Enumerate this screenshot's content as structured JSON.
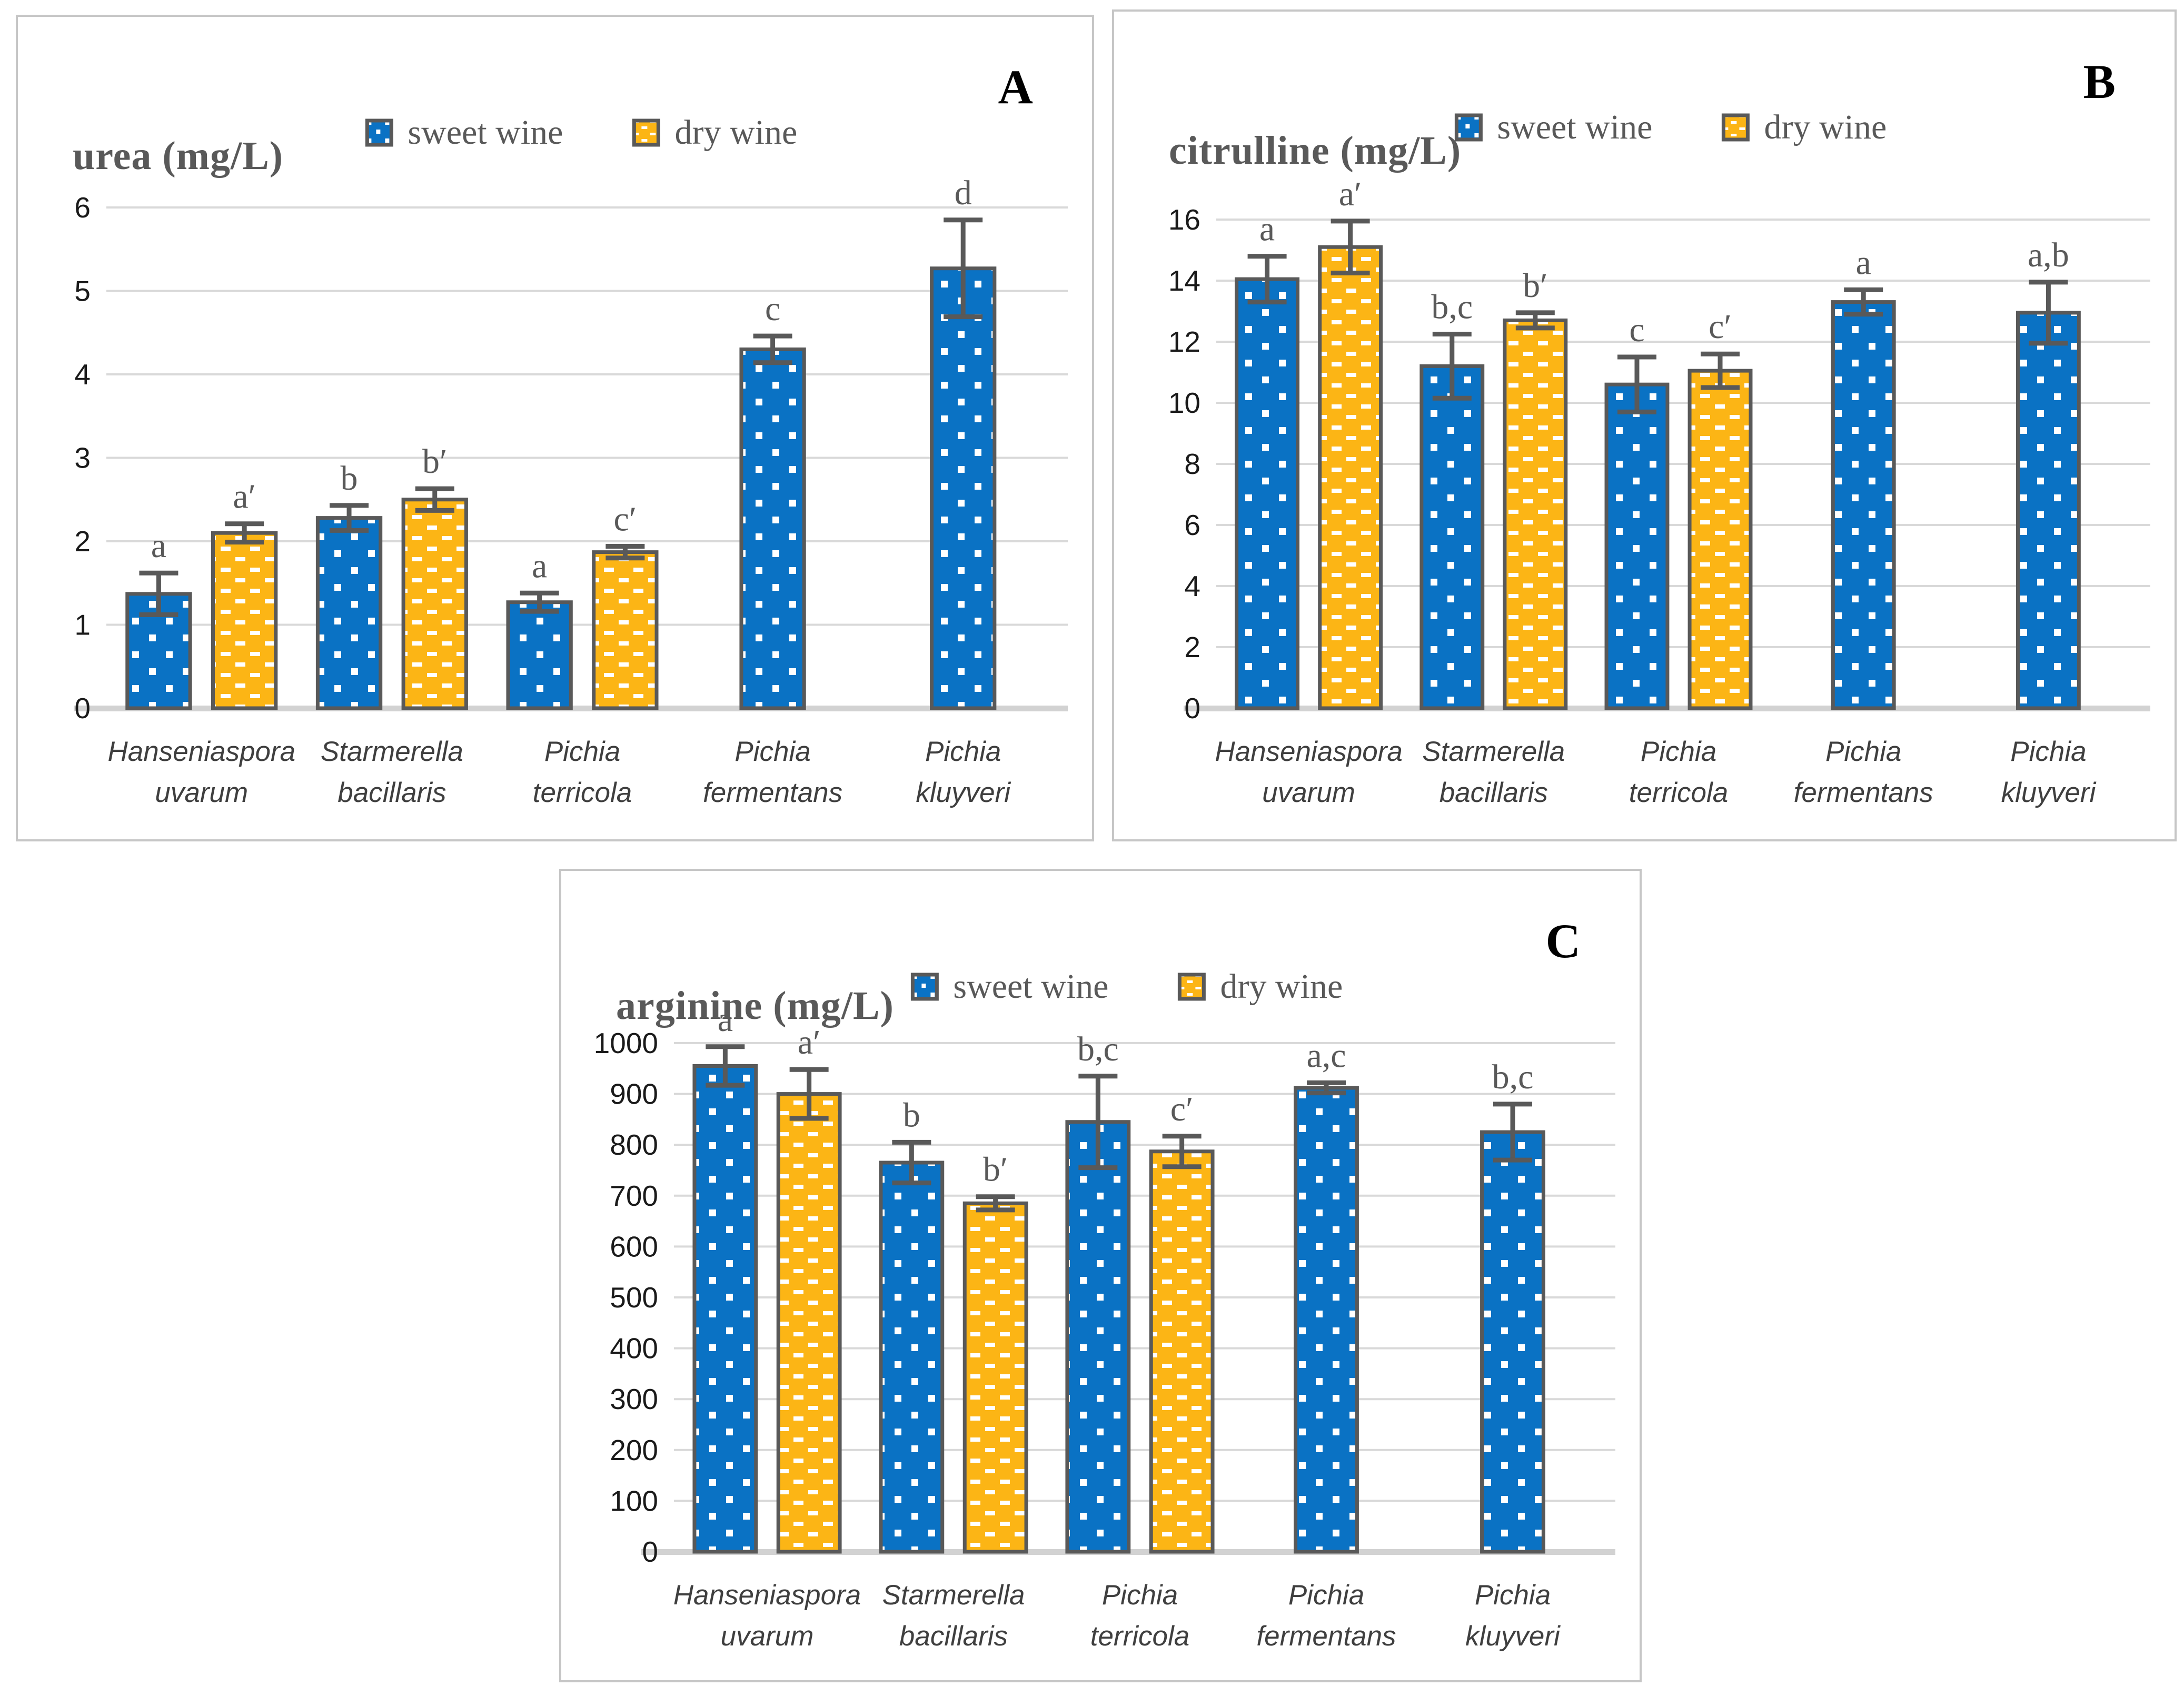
{
  "figure": {
    "panels": [
      {
        "letter": "A"
      },
      {
        "letter": "B"
      },
      {
        "letter": "C"
      }
    ]
  },
  "colors": {
    "sweet_wine_fill": "#0a72c4",
    "dry_wine_fill": "#fcb515",
    "bar_border": "#595959",
    "error_bar": "#595959",
    "gridline": "#d9d9d9",
    "baseline": "#d2d2d2",
    "panel_border": "#c6c6c6",
    "title_text": "#595959",
    "sig_text": "#595959",
    "tick_text": "#1a1a1a",
    "category_text": "#3f3f3f",
    "letter_text": "#000000"
  },
  "chart_data": [
    {
      "type": "bar",
      "panel_letter": "A",
      "title": "urea (mg/L)",
      "ylabel": "urea (mg/L)",
      "xlabel": "",
      "grid": true,
      "legend_position": "top",
      "ylim": [
        0,
        6
      ],
      "ytick_step": 1,
      "yticks": [
        0,
        1,
        2,
        3,
        4,
        5,
        6
      ],
      "categories": [
        "Hanseniaspora uvarum",
        "Starmerella bacillaris",
        "Pichia terricola",
        "Pichia fermentans",
        "Pichia kluyveri"
      ],
      "categories_lines": [
        [
          "Hanseniaspora",
          "uvarum"
        ],
        [
          "Starmerella",
          "bacillaris"
        ],
        [
          "Pichia",
          "terricola"
        ],
        [
          "Pichia",
          "fermentans"
        ],
        [
          "Pichia",
          "kluyveri"
        ]
      ],
      "series": [
        {
          "name": "sweet wine",
          "values": [
            1.37,
            2.28,
            1.27,
            4.3,
            5.27
          ],
          "errors": [
            0.25,
            0.15,
            0.11,
            0.16,
            0.58
          ],
          "sig_labels": [
            "a",
            "b",
            "a",
            "c",
            "d"
          ]
        },
        {
          "name": "dry wine",
          "values": [
            2.1,
            2.5,
            1.87,
            null,
            null
          ],
          "errors": [
            0.11,
            0.13,
            0.07,
            null,
            null
          ],
          "sig_labels": [
            "a′",
            "b′",
            "c′",
            null,
            null
          ]
        }
      ]
    },
    {
      "type": "bar",
      "panel_letter": "B",
      "title": "citrulline (mg/L)",
      "ylabel": "citrulline (mg/L)",
      "xlabel": "",
      "grid": true,
      "legend_position": "top",
      "ylim": [
        0,
        16
      ],
      "ytick_step": 2,
      "yticks": [
        0,
        2,
        4,
        6,
        8,
        10,
        12,
        14,
        16
      ],
      "categories": [
        "Hanseniaspora uvarum",
        "Starmerella bacillaris",
        "Pichia terricola",
        "Pichia fermentans",
        "Pichia kluyveri"
      ],
      "categories_lines": [
        [
          "Hanseniaspora",
          "uvarum"
        ],
        [
          "Starmerella",
          "bacillaris"
        ],
        [
          "Pichia",
          "terricola"
        ],
        [
          "Pichia",
          "fermentans"
        ],
        [
          "Pichia",
          "kluyveri"
        ]
      ],
      "series": [
        {
          "name": "sweet wine",
          "values": [
            14.05,
            11.2,
            10.6,
            13.3,
            12.95
          ],
          "errors": [
            0.75,
            1.05,
            0.9,
            0.4,
            1.0
          ],
          "sig_labels": [
            "a",
            "b,c",
            "c",
            "a",
            "a,b"
          ]
        },
        {
          "name": "dry wine",
          "values": [
            15.1,
            12.7,
            11.05,
            null,
            null
          ],
          "errors": [
            0.85,
            0.25,
            0.55,
            null,
            null
          ],
          "sig_labels": [
            "a′",
            "b′",
            "c′",
            null,
            null
          ]
        }
      ]
    },
    {
      "type": "bar",
      "panel_letter": "C",
      "title": "arginine (mg/L)",
      "ylabel": "arginine (mg/L)",
      "xlabel": "",
      "grid": true,
      "legend_position": "top",
      "ylim": [
        0,
        1000
      ],
      "ytick_step": 100,
      "yticks": [
        0,
        100,
        200,
        300,
        400,
        500,
        600,
        700,
        800,
        900,
        1000
      ],
      "categories": [
        "Hanseniaspora uvarum",
        "Starmerella bacillaris",
        "Pichia terricola",
        "Pichia fermentans",
        "Pichia kluyveri"
      ],
      "categories_lines": [
        [
          "Hanseniaspora",
          "uvarum"
        ],
        [
          "Starmerella",
          "bacillaris"
        ],
        [
          "Pichia",
          "terricola"
        ],
        [
          "Pichia",
          "fermentans"
        ],
        [
          "Pichia",
          "kluyveri"
        ]
      ],
      "series": [
        {
          "name": "sweet wine",
          "values": [
            955,
            765,
            845,
            912,
            825
          ],
          "errors": [
            38,
            40,
            90,
            10,
            55
          ],
          "sig_labels": [
            "a",
            "b",
            "b,c",
            "a,c",
            "b,c"
          ]
        },
        {
          "name": "dry wine",
          "values": [
            900,
            685,
            787,
            null,
            null
          ],
          "errors": [
            48,
            13,
            30,
            null,
            null
          ],
          "sig_labels": [
            "a′",
            "b′",
            "c′",
            null,
            null
          ]
        }
      ]
    }
  ]
}
